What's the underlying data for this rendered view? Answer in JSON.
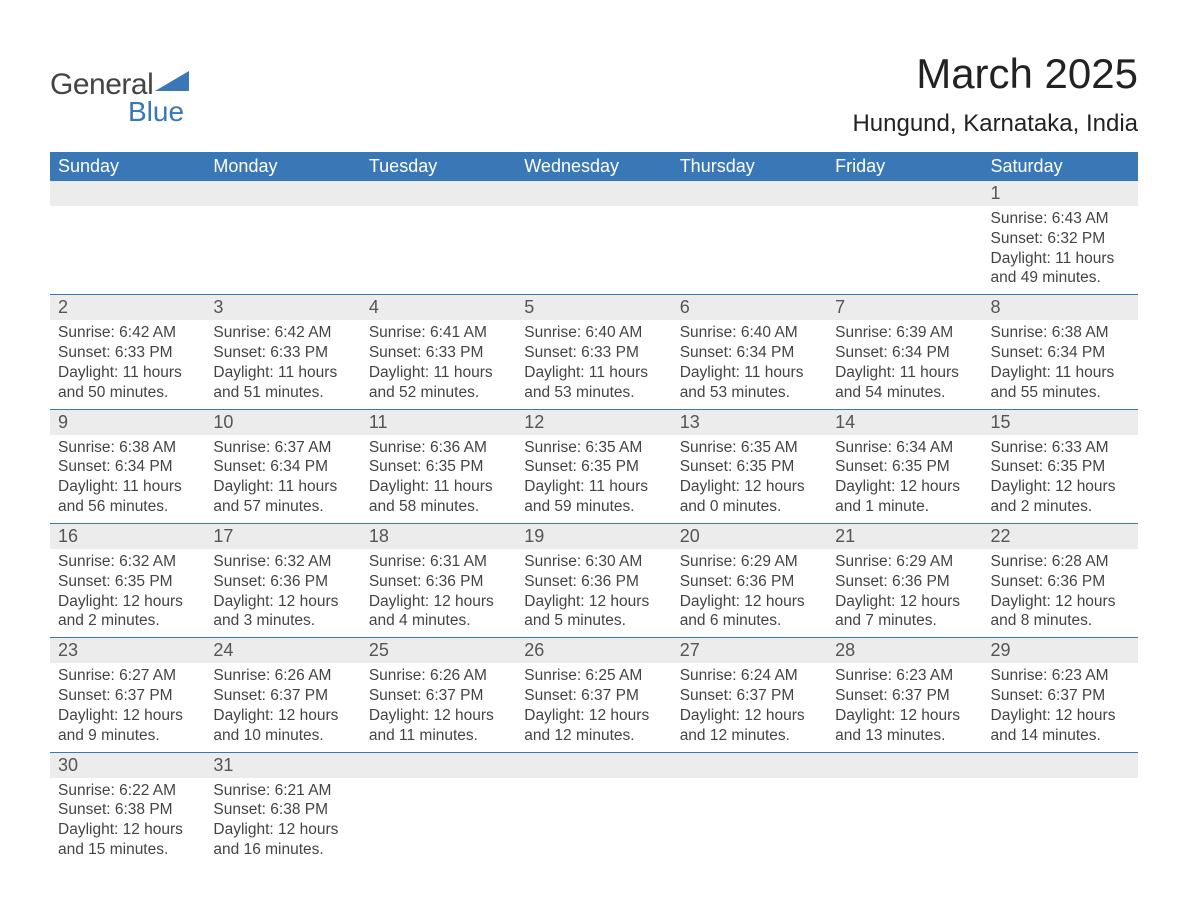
{
  "logo": {
    "text1": "General",
    "text2": "Blue",
    "shape_color": "#3a77b7"
  },
  "title": "March 2025",
  "subtitle": "Hungund, Karnataka, India",
  "colors": {
    "header_bg": "#3a77b7",
    "header_text": "#ffffff",
    "dayrow_bg": "#ececec",
    "body_text": "#444444",
    "divider": "#3a77b7",
    "page_bg": "#ffffff"
  },
  "typography": {
    "title_fontsize": 42,
    "subtitle_fontsize": 24,
    "header_fontsize": 18,
    "daynum_fontsize": 18,
    "detail_fontsize": 15.5
  },
  "day_headers": [
    "Sunday",
    "Monday",
    "Tuesday",
    "Wednesday",
    "Thursday",
    "Friday",
    "Saturday"
  ],
  "weeks": [
    [
      null,
      null,
      null,
      null,
      null,
      null,
      {
        "n": "1",
        "sunrise": "6:43 AM",
        "sunset": "6:32 PM",
        "daylight": "11 hours and 49 minutes."
      }
    ],
    [
      {
        "n": "2",
        "sunrise": "6:42 AM",
        "sunset": "6:33 PM",
        "daylight": "11 hours and 50 minutes."
      },
      {
        "n": "3",
        "sunrise": "6:42 AM",
        "sunset": "6:33 PM",
        "daylight": "11 hours and 51 minutes."
      },
      {
        "n": "4",
        "sunrise": "6:41 AM",
        "sunset": "6:33 PM",
        "daylight": "11 hours and 52 minutes."
      },
      {
        "n": "5",
        "sunrise": "6:40 AM",
        "sunset": "6:33 PM",
        "daylight": "11 hours and 53 minutes."
      },
      {
        "n": "6",
        "sunrise": "6:40 AM",
        "sunset": "6:34 PM",
        "daylight": "11 hours and 53 minutes."
      },
      {
        "n": "7",
        "sunrise": "6:39 AM",
        "sunset": "6:34 PM",
        "daylight": "11 hours and 54 minutes."
      },
      {
        "n": "8",
        "sunrise": "6:38 AM",
        "sunset": "6:34 PM",
        "daylight": "11 hours and 55 minutes."
      }
    ],
    [
      {
        "n": "9",
        "sunrise": "6:38 AM",
        "sunset": "6:34 PM",
        "daylight": "11 hours and 56 minutes."
      },
      {
        "n": "10",
        "sunrise": "6:37 AM",
        "sunset": "6:34 PM",
        "daylight": "11 hours and 57 minutes."
      },
      {
        "n": "11",
        "sunrise": "6:36 AM",
        "sunset": "6:35 PM",
        "daylight": "11 hours and 58 minutes."
      },
      {
        "n": "12",
        "sunrise": "6:35 AM",
        "sunset": "6:35 PM",
        "daylight": "11 hours and 59 minutes."
      },
      {
        "n": "13",
        "sunrise": "6:35 AM",
        "sunset": "6:35 PM",
        "daylight": "12 hours and 0 minutes."
      },
      {
        "n": "14",
        "sunrise": "6:34 AM",
        "sunset": "6:35 PM",
        "daylight": "12 hours and 1 minute."
      },
      {
        "n": "15",
        "sunrise": "6:33 AM",
        "sunset": "6:35 PM",
        "daylight": "12 hours and 2 minutes."
      }
    ],
    [
      {
        "n": "16",
        "sunrise": "6:32 AM",
        "sunset": "6:35 PM",
        "daylight": "12 hours and 2 minutes."
      },
      {
        "n": "17",
        "sunrise": "6:32 AM",
        "sunset": "6:36 PM",
        "daylight": "12 hours and 3 minutes."
      },
      {
        "n": "18",
        "sunrise": "6:31 AM",
        "sunset": "6:36 PM",
        "daylight": "12 hours and 4 minutes."
      },
      {
        "n": "19",
        "sunrise": "6:30 AM",
        "sunset": "6:36 PM",
        "daylight": "12 hours and 5 minutes."
      },
      {
        "n": "20",
        "sunrise": "6:29 AM",
        "sunset": "6:36 PM",
        "daylight": "12 hours and 6 minutes."
      },
      {
        "n": "21",
        "sunrise": "6:29 AM",
        "sunset": "6:36 PM",
        "daylight": "12 hours and 7 minutes."
      },
      {
        "n": "22",
        "sunrise": "6:28 AM",
        "sunset": "6:36 PM",
        "daylight": "12 hours and 8 minutes."
      }
    ],
    [
      {
        "n": "23",
        "sunrise": "6:27 AM",
        "sunset": "6:37 PM",
        "daylight": "12 hours and 9 minutes."
      },
      {
        "n": "24",
        "sunrise": "6:26 AM",
        "sunset": "6:37 PM",
        "daylight": "12 hours and 10 minutes."
      },
      {
        "n": "25",
        "sunrise": "6:26 AM",
        "sunset": "6:37 PM",
        "daylight": "12 hours and 11 minutes."
      },
      {
        "n": "26",
        "sunrise": "6:25 AM",
        "sunset": "6:37 PM",
        "daylight": "12 hours and 12 minutes."
      },
      {
        "n": "27",
        "sunrise": "6:24 AM",
        "sunset": "6:37 PM",
        "daylight": "12 hours and 12 minutes."
      },
      {
        "n": "28",
        "sunrise": "6:23 AM",
        "sunset": "6:37 PM",
        "daylight": "12 hours and 13 minutes."
      },
      {
        "n": "29",
        "sunrise": "6:23 AM",
        "sunset": "6:37 PM",
        "daylight": "12 hours and 14 minutes."
      }
    ],
    [
      {
        "n": "30",
        "sunrise": "6:22 AM",
        "sunset": "6:38 PM",
        "daylight": "12 hours and 15 minutes."
      },
      {
        "n": "31",
        "sunrise": "6:21 AM",
        "sunset": "6:38 PM",
        "daylight": "12 hours and 16 minutes."
      },
      null,
      null,
      null,
      null,
      null
    ]
  ],
  "labels": {
    "sunrise": "Sunrise: ",
    "sunset": "Sunset: ",
    "daylight": "Daylight: "
  }
}
